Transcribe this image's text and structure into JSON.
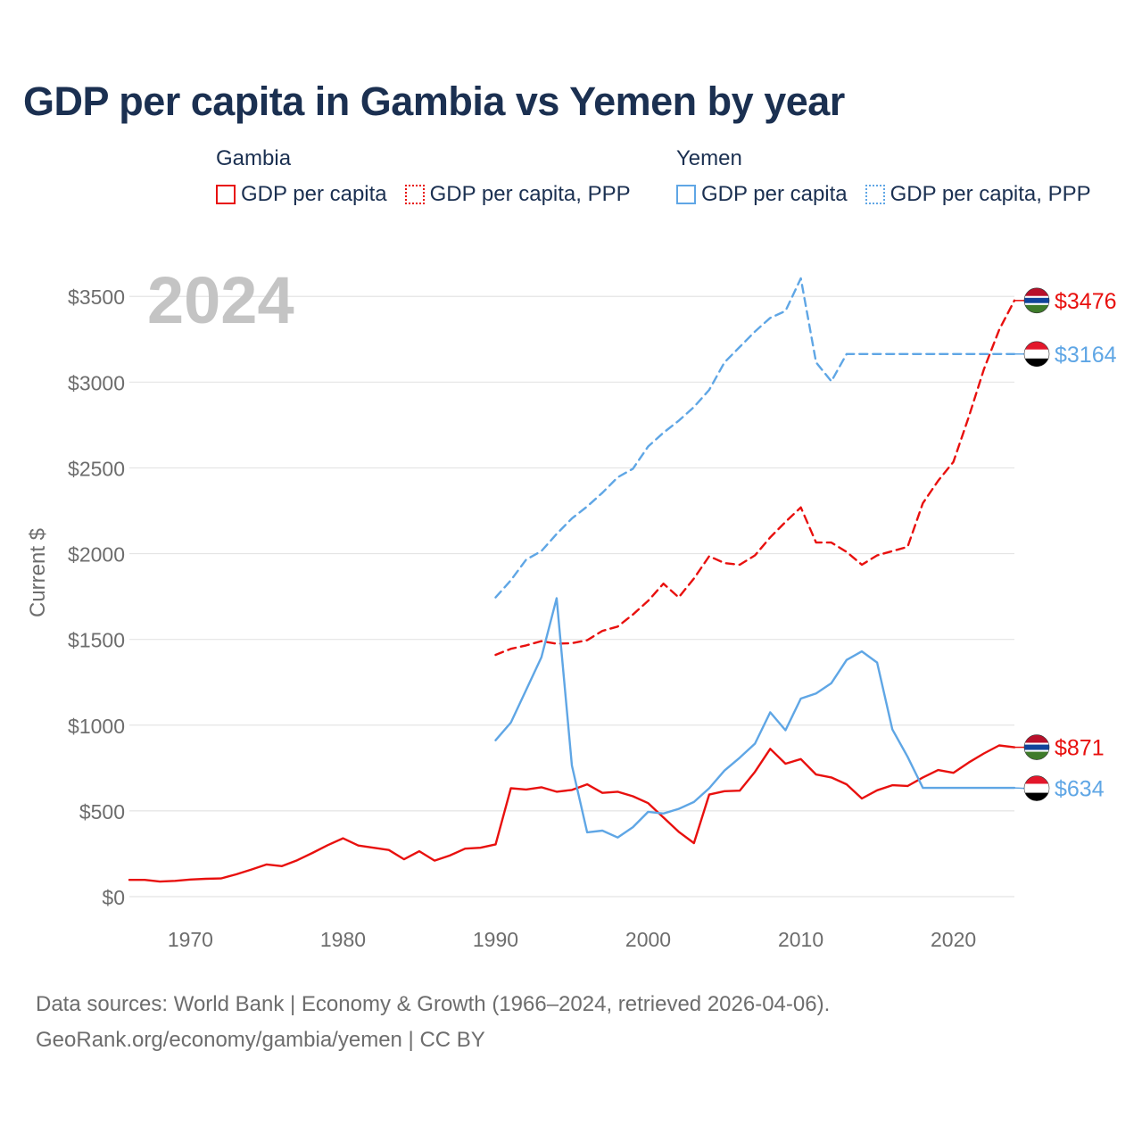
{
  "title": "GDP per capita in Gambia vs Yemen by year",
  "legend": [
    {
      "country": "Gambia",
      "items": [
        {
          "label": "GDP per capita",
          "style": "solid",
          "color": "#e8100e"
        },
        {
          "label": "GDP per capita, PPP",
          "style": "dotted",
          "color": "#e8100e"
        }
      ]
    },
    {
      "country": "Yemen",
      "items": [
        {
          "label": "GDP per capita",
          "style": "solid",
          "color": "#5fa6e5"
        },
        {
          "label": "GDP per capita, PPP",
          "style": "dotted",
          "color": "#5fa6e5"
        }
      ]
    }
  ],
  "source": {
    "line1": "Data sources: World Bank | Economy & Growth (1966–2024, retrieved 2026-04-06).",
    "line2": "GeoRank.org/economy/gambia/yemen | CC BY"
  },
  "chart_data": {
    "type": "line",
    "title": "GDP per capita in Gambia vs Yemen by year",
    "ylabel": "Current $",
    "xlabel": "",
    "year_label": "2024",
    "xlim": [
      1966,
      2024
    ],
    "ylim": [
      0,
      3600
    ],
    "x_ticks": [
      1970,
      1980,
      1990,
      2000,
      2010,
      2020
    ],
    "y_ticks": [
      0,
      500,
      1000,
      1500,
      2000,
      2500,
      3000,
      3500
    ],
    "y_tick_labels": [
      "$0",
      "$500",
      "$1000",
      "$1500",
      "$2000",
      "$2500",
      "$3000",
      "$3500"
    ],
    "grid": true,
    "series": [
      {
        "name": "Gambia GDP per capita",
        "color": "#e8100e",
        "dash": "solid",
        "flag": "gambia",
        "end_label": "$871",
        "x": [
          1966,
          1967,
          1968,
          1969,
          1970,
          1971,
          1972,
          1973,
          1974,
          1975,
          1976,
          1977,
          1978,
          1979,
          1980,
          1981,
          1982,
          1983,
          1984,
          1985,
          1986,
          1987,
          1988,
          1989,
          1990,
          1991,
          1992,
          1993,
          1994,
          1995,
          1996,
          1997,
          1998,
          1999,
          2000,
          2001,
          2002,
          2003,
          2004,
          2005,
          2006,
          2007,
          2008,
          2009,
          2010,
          2011,
          2012,
          2013,
          2014,
          2015,
          2016,
          2017,
          2018,
          2019,
          2020,
          2021,
          2022,
          2023,
          2024
        ],
        "values": [
          98,
          98,
          88,
          92,
          100,
          104,
          106,
          130,
          158,
          188,
          178,
          212,
          255,
          300,
          340,
          298,
          285,
          272,
          218,
          265,
          210,
          240,
          280,
          285,
          305,
          632,
          625,
          638,
          612,
          622,
          655,
          605,
          612,
          585,
          545,
          462,
          378,
          312,
          595,
          615,
          618,
          728,
          862,
          775,
          802,
          712,
          695,
          655,
          572,
          620,
          650,
          645,
          695,
          738,
          722,
          782,
          835,
          882,
          871
        ]
      },
      {
        "name": "Gambia GDP per capita, PPP",
        "color": "#e8100e",
        "dash": "dashed",
        "flag": "gambia",
        "end_label": "$3476",
        "x": [
          1990,
          1991,
          1992,
          1993,
          1994,
          1995,
          1996,
          1997,
          1998,
          1999,
          2000,
          2001,
          2002,
          2003,
          2004,
          2005,
          2006,
          2007,
          2008,
          2009,
          2010,
          2011,
          2012,
          2013,
          2014,
          2015,
          2016,
          2017,
          2018,
          2019,
          2020,
          2021,
          2022,
          2023,
          2024
        ],
        "values": [
          1410,
          1445,
          1465,
          1490,
          1475,
          1478,
          1495,
          1550,
          1575,
          1645,
          1725,
          1825,
          1745,
          1855,
          1985,
          1945,
          1935,
          1990,
          2095,
          2185,
          2270,
          2065,
          2065,
          2010,
          1935,
          1990,
          2015,
          2040,
          2295,
          2425,
          2535,
          2795,
          3075,
          3305,
          3476
        ]
      },
      {
        "name": "Yemen GDP per capita",
        "color": "#5fa6e5",
        "dash": "solid",
        "flag": "yemen",
        "end_label": "$634",
        "x": [
          1990,
          1991,
          1992,
          1993,
          1994,
          1995,
          1996,
          1997,
          1998,
          1999,
          2000,
          2001,
          2002,
          2003,
          2004,
          2005,
          2006,
          2007,
          2008,
          2009,
          2010,
          2011,
          2012,
          2013,
          2014,
          2015,
          2016,
          2017,
          2018,
          2019,
          2020,
          2021,
          2022,
          2023,
          2024
        ],
        "values": [
          912,
          1015,
          1205,
          1395,
          1740,
          765,
          375,
          385,
          345,
          405,
          495,
          485,
          512,
          552,
          632,
          735,
          810,
          892,
          1075,
          970,
          1155,
          1185,
          1245,
          1380,
          1430,
          1365,
          975,
          815,
          634,
          634,
          634,
          634,
          634,
          634,
          634
        ]
      },
      {
        "name": "Yemen GDP per capita, PPP",
        "color": "#5fa6e5",
        "dash": "dashed",
        "flag": "yemen",
        "end_label": "$3164",
        "x": [
          1990,
          1991,
          1992,
          1993,
          1994,
          1995,
          1996,
          1997,
          1998,
          1999,
          2000,
          2001,
          2002,
          2003,
          2004,
          2005,
          2006,
          2007,
          2008,
          2009,
          2010,
          2011,
          2012,
          2013,
          2014,
          2015,
          2016,
          2017,
          2018,
          2019,
          2020,
          2021,
          2022,
          2023,
          2024
        ],
        "values": [
          1745,
          1845,
          1965,
          2015,
          2115,
          2205,
          2275,
          2355,
          2445,
          2495,
          2625,
          2705,
          2775,
          2855,
          2955,
          3115,
          3205,
          3295,
          3375,
          3415,
          3605,
          3115,
          3005,
          3164,
          3164,
          3164,
          3164,
          3164,
          3164,
          3164,
          3164,
          3164,
          3164,
          3164,
          3164
        ]
      }
    ]
  }
}
